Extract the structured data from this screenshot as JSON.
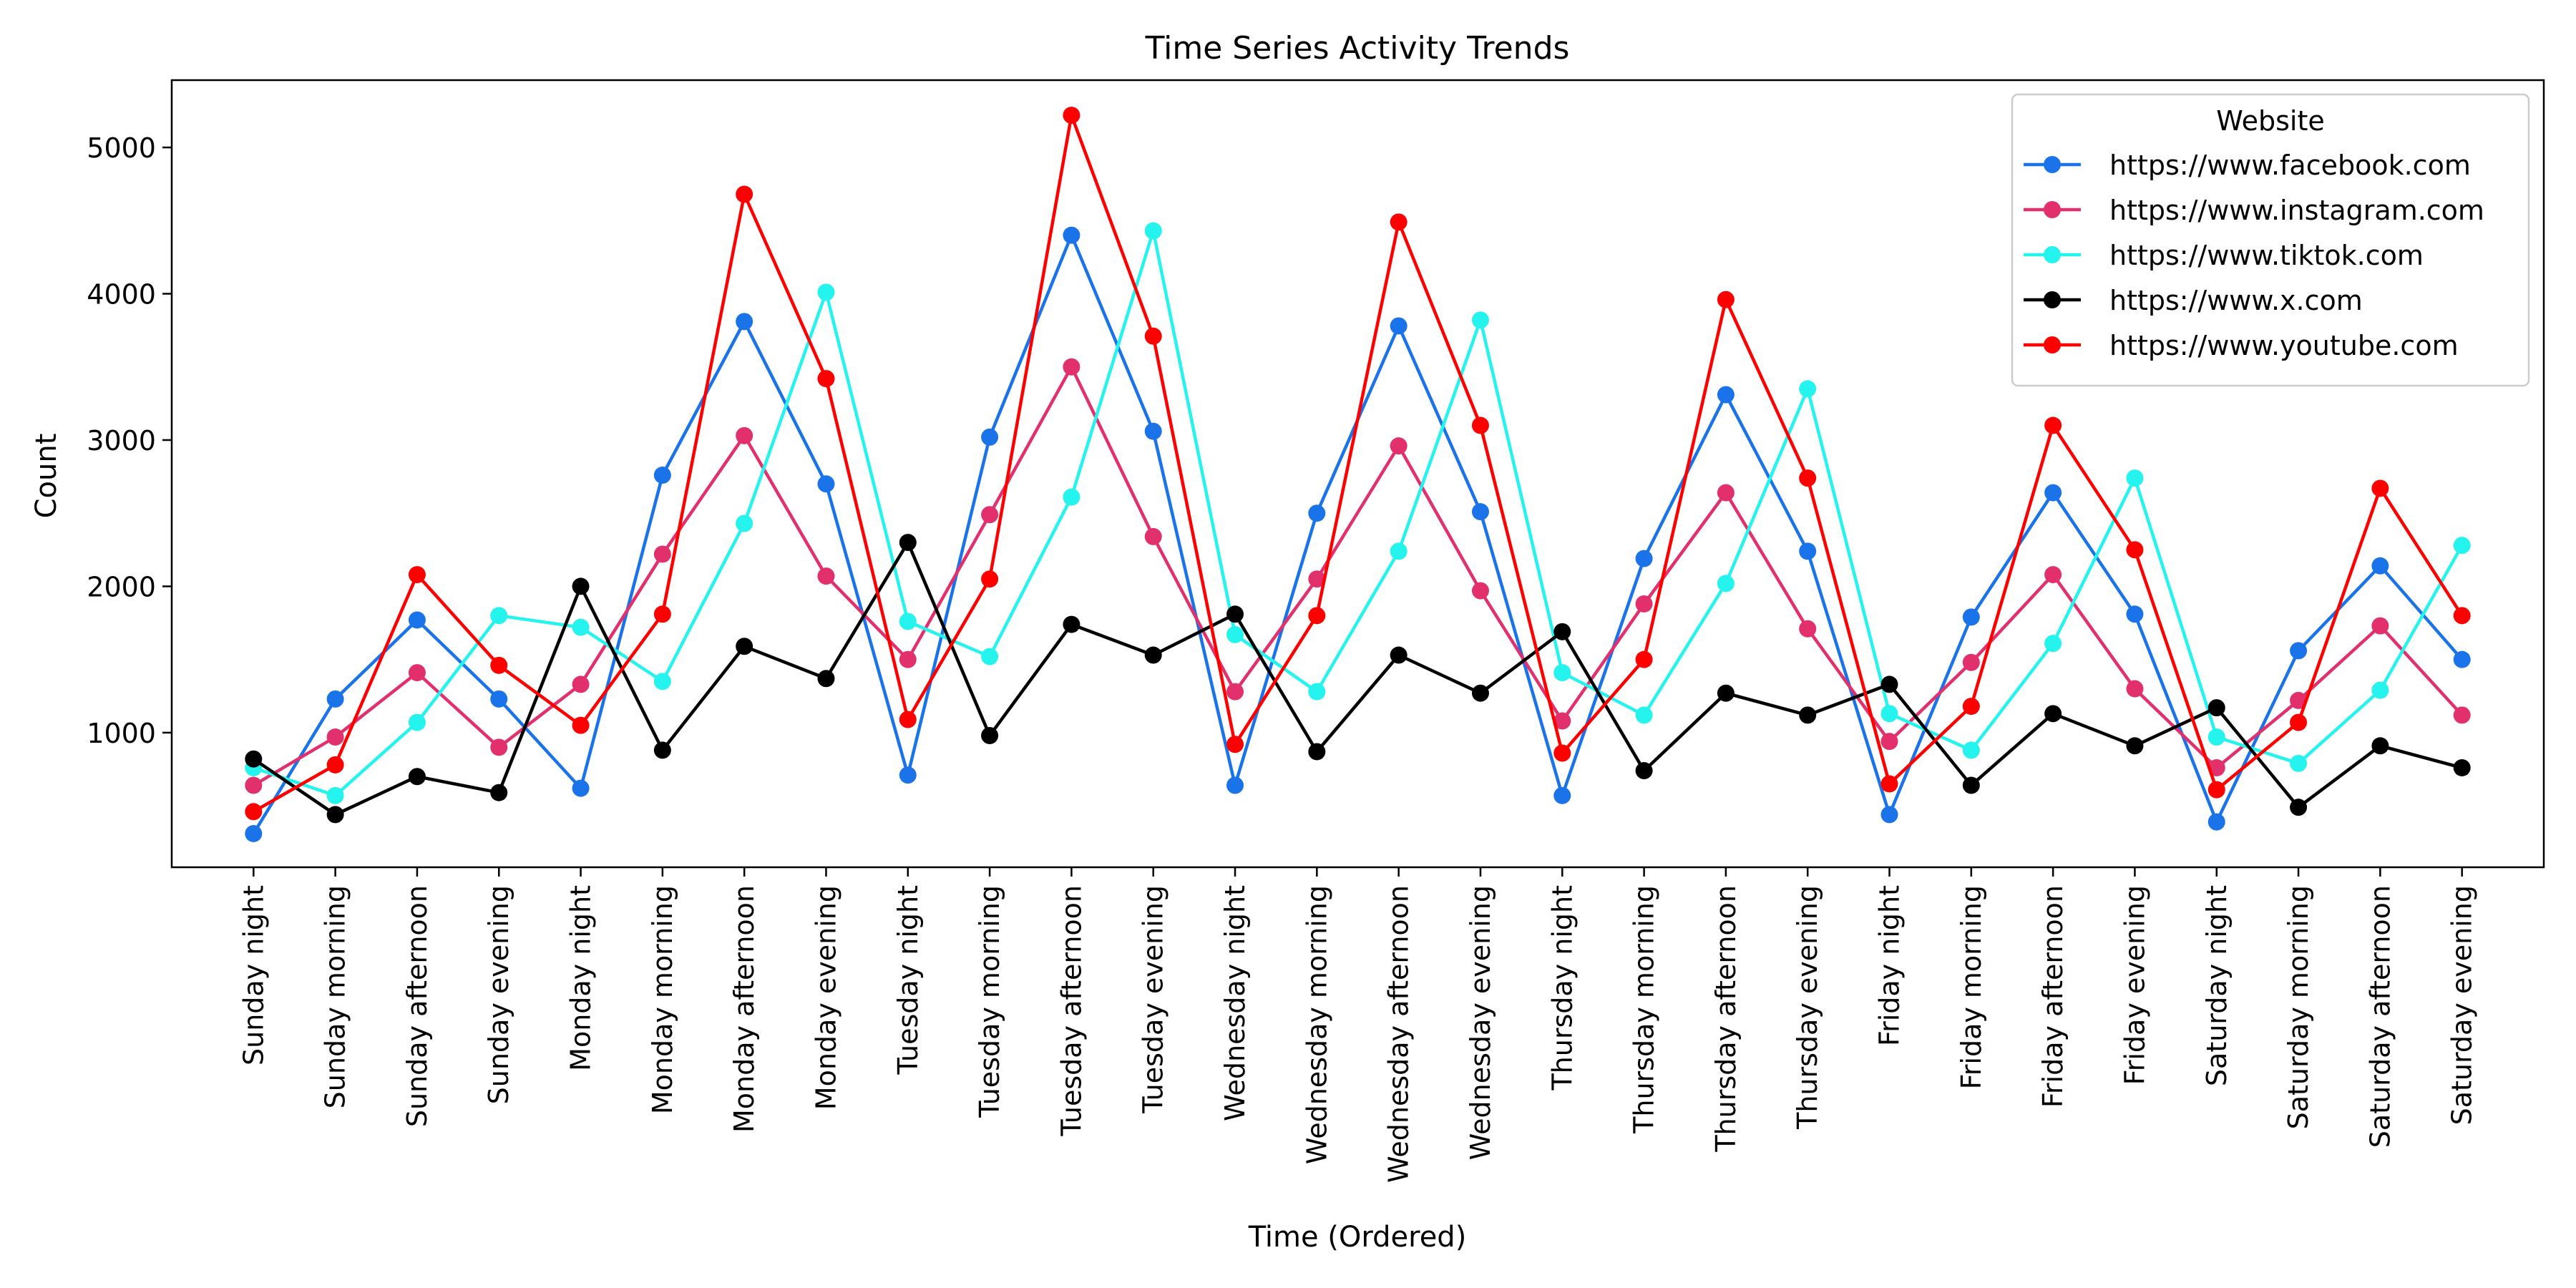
{
  "chart_data": {
    "type": "line",
    "title": "Time Series Activity Trends",
    "xlabel": "Time (Ordered)",
    "ylabel": "Count",
    "ylim": [
      80,
      5460
    ],
    "yticks": [
      1000,
      2000,
      3000,
      4000,
      5000
    ],
    "grid": false,
    "legend_title": "Website",
    "legend_position": "top-right",
    "categories": [
      "Sunday night",
      "Sunday morning",
      "Sunday afternoon",
      "Sunday evening",
      "Monday night",
      "Monday morning",
      "Monday afternoon",
      "Monday evening",
      "Tuesday night",
      "Tuesday morning",
      "Tuesday afternoon",
      "Tuesday evening",
      "Wednesday night",
      "Wednesday morning",
      "Wednesday afternoon",
      "Wednesday evening",
      "Thursday night",
      "Thursday morning",
      "Thursday afternoon",
      "Thursday evening",
      "Friday night",
      "Friday morning",
      "Friday afternoon",
      "Friday evening",
      "Saturday night",
      "Saturday morning",
      "Saturday afternoon",
      "Saturday evening"
    ],
    "series": [
      {
        "name": "https://www.facebook.com",
        "color": "#1a73e8",
        "values": [
          310,
          1230,
          1770,
          1230,
          620,
          2760,
          3810,
          2700,
          710,
          3020,
          4400,
          3060,
          640,
          2500,
          3780,
          2510,
          570,
          2190,
          3310,
          2240,
          440,
          1790,
          2640,
          1810,
          390,
          1560,
          2140,
          1500
        ]
      },
      {
        "name": "https://www.instagram.com",
        "color": "#e1306c",
        "values": [
          640,
          970,
          1410,
          900,
          1330,
          2220,
          3030,
          2070,
          1500,
          2490,
          3500,
          2340,
          1280,
          2050,
          2960,
          1970,
          1080,
          1880,
          2640,
          1710,
          940,
          1480,
          2080,
          1300,
          760,
          1220,
          1730,
          1120
        ]
      },
      {
        "name": "https://www.tiktok.com",
        "color": "#25f4ee",
        "values": [
          760,
          570,
          1070,
          1800,
          1720,
          1350,
          2430,
          4010,
          1760,
          1520,
          2610,
          4430,
          1670,
          1280,
          2240,
          3820,
          1410,
          1120,
          2020,
          3350,
          1130,
          880,
          1610,
          2740,
          970,
          790,
          1290,
          2280
        ]
      },
      {
        "name": "https://www.x.com",
        "color": "#000000",
        "values": [
          820,
          440,
          700,
          590,
          2000,
          880,
          1590,
          1370,
          2300,
          980,
          1740,
          1530,
          1810,
          870,
          1530,
          1270,
          1690,
          740,
          1270,
          1120,
          1330,
          640,
          1130,
          910,
          1170,
          490,
          910,
          760
        ]
      },
      {
        "name": "https://www.youtube.com",
        "color": "#ff0000",
        "values": [
          460,
          780,
          2080,
          1460,
          1050,
          1810,
          4680,
          3420,
          1090,
          2050,
          5220,
          3710,
          920,
          1800,
          4490,
          3100,
          860,
          1500,
          3960,
          2740,
          650,
          1180,
          3100,
          2250,
          610,
          1070,
          2670,
          1800
        ]
      }
    ]
  }
}
